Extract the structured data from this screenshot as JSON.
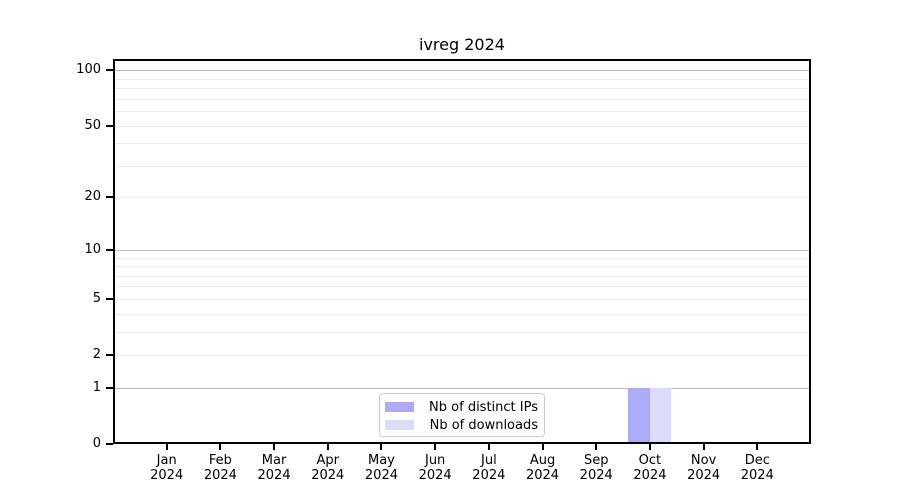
{
  "chart_data": {
    "type": "bar",
    "title": "ivreg 2024",
    "x_categories": [
      "Jan 2024",
      "Feb 2024",
      "Mar 2024",
      "Apr 2024",
      "May 2024",
      "Jun 2024",
      "Jul 2024",
      "Aug 2024",
      "Sep 2024",
      "Oct 2024",
      "Nov 2024",
      "Dec 2024"
    ],
    "series": [
      {
        "name": "Nb of distinct IPs",
        "color": "#acabf8",
        "values": [
          0,
          0,
          0,
          0,
          0,
          0,
          0,
          0,
          0,
          1,
          0,
          0
        ]
      },
      {
        "name": "Nb of downloads",
        "color": "#dcdbf9",
        "values": [
          0,
          0,
          0,
          0,
          0,
          0,
          0,
          0,
          0,
          1,
          0,
          0
        ]
      }
    ],
    "y_axis": {
      "scale": "log1p",
      "tick_labels": [
        0,
        1,
        2,
        5,
        10,
        20,
        50,
        100
      ],
      "range": [
        0,
        115
      ]
    },
    "grid": {
      "major_lines": [
        1,
        10,
        100
      ],
      "minor_lines": [
        2,
        3,
        4,
        5,
        6,
        7,
        8,
        9,
        20,
        30,
        40,
        50,
        60,
        70,
        80,
        90
      ],
      "major_color": "#bcbcbc",
      "minor_color": "#ebebeb"
    },
    "legend": {
      "position": "lower center",
      "entries": [
        "Nb of distinct IPs",
        "Nb of downloads"
      ]
    }
  }
}
